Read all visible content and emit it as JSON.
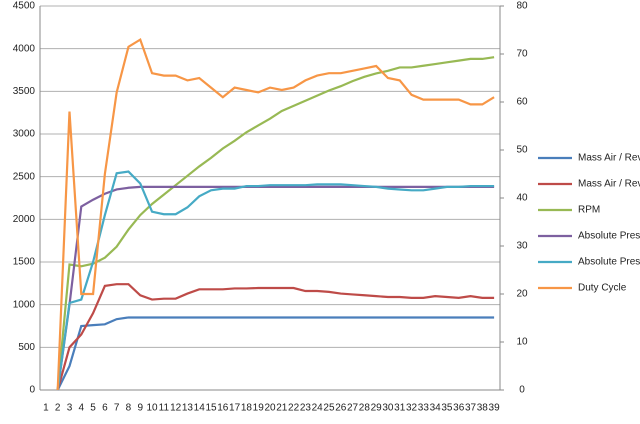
{
  "chart_data": {
    "type": "line",
    "categories": [
      "1",
      "2",
      "3",
      "4",
      "5",
      "6",
      "7",
      "8",
      "9",
      "10",
      "11",
      "12",
      "13",
      "14",
      "15",
      "16",
      "17",
      "18",
      "19",
      "20",
      "21",
      "22",
      "23",
      "24",
      "25",
      "26",
      "27",
      "28",
      "29",
      "30",
      "31",
      "32",
      "33",
      "34",
      "35",
      "36",
      "37",
      "38",
      "39"
    ],
    "ylim": [
      0,
      4500
    ],
    "yticks": [
      0,
      500,
      1000,
      1500,
      2000,
      2500,
      3000,
      3500,
      4000,
      4500
    ],
    "y2lim": [
      0,
      80
    ],
    "y2ticks": [
      0,
      10,
      20,
      30,
      40,
      50,
      60,
      70,
      80
    ],
    "grid": true,
    "legend": "right",
    "series": [
      {
        "name": "Mass Air / Rev.",
        "color": "#4a7ebb",
        "values": [
          null,
          0,
          280,
          750,
          760,
          770,
          830,
          850,
          850,
          850,
          850,
          850,
          850,
          850,
          850,
          850,
          850,
          850,
          850,
          850,
          850,
          850,
          850,
          850,
          850,
          850,
          850,
          850,
          850,
          850,
          850,
          850,
          850,
          850,
          850,
          850,
          850,
          850,
          850
        ]
      },
      {
        "name": "Mass Air / Rev.",
        "color": "#be4b48",
        "values": [
          null,
          0,
          500,
          650,
          900,
          1220,
          1240,
          1240,
          1110,
          1060,
          1070,
          1070,
          1130,
          1180,
          1180,
          1180,
          1190,
          1190,
          1195,
          1195,
          1195,
          1195,
          1160,
          1160,
          1150,
          1130,
          1120,
          1110,
          1100,
          1090,
          1090,
          1080,
          1080,
          1100,
          1090,
          1080,
          1100,
          1080,
          1080
        ]
      },
      {
        "name": "RPM",
        "color": "#98b954",
        "values": [
          null,
          0,
          1470,
          1450,
          1480,
          1550,
          1680,
          1880,
          2050,
          2180,
          2290,
          2400,
          2510,
          2620,
          2720,
          2830,
          2920,
          3020,
          3100,
          3180,
          3270,
          3330,
          3390,
          3450,
          3510,
          3560,
          3620,
          3670,
          3710,
          3740,
          3780,
          3780,
          3800,
          3820,
          3840,
          3860,
          3880,
          3880,
          3900
        ]
      },
      {
        "name": "Absolute Pres.",
        "color": "#7d60a0",
        "values": [
          null,
          0,
          1000,
          2150,
          2230,
          2300,
          2350,
          2370,
          2380,
          2380,
          2380,
          2380,
          2380,
          2380,
          2380,
          2380,
          2380,
          2380,
          2380,
          2380,
          2380,
          2380,
          2380,
          2380,
          2380,
          2380,
          2380,
          2380,
          2380,
          2380,
          2380,
          2380,
          2380,
          2380,
          2380,
          2380,
          2380,
          2380,
          2380
        ]
      },
      {
        "name": "Absolute Pres.",
        "color": "#46aac5",
        "values": [
          null,
          0,
          1020,
          1060,
          1500,
          2050,
          2540,
          2560,
          2420,
          2090,
          2060,
          2060,
          2140,
          2270,
          2340,
          2360,
          2360,
          2390,
          2390,
          2400,
          2400,
          2400,
          2400,
          2410,
          2410,
          2410,
          2400,
          2390,
          2380,
          2360,
          2350,
          2340,
          2340,
          2360,
          2380,
          2380,
          2390,
          2390,
          2390
        ]
      },
      {
        "name": "Duty Cycle",
        "color": "#f79646",
        "axis": "y2",
        "values": [
          null,
          0,
          58,
          20,
          20,
          45,
          62,
          71.5,
          73,
          66,
          65.5,
          65.5,
          64.5,
          65,
          63,
          61,
          63,
          62.5,
          62,
          63,
          62.5,
          63,
          64.5,
          65.5,
          66,
          66,
          66.5,
          67,
          67.5,
          65,
          64.5,
          61.5,
          60.5,
          60.5,
          60.5,
          60.5,
          59.5,
          59.5,
          61
        ]
      }
    ]
  }
}
